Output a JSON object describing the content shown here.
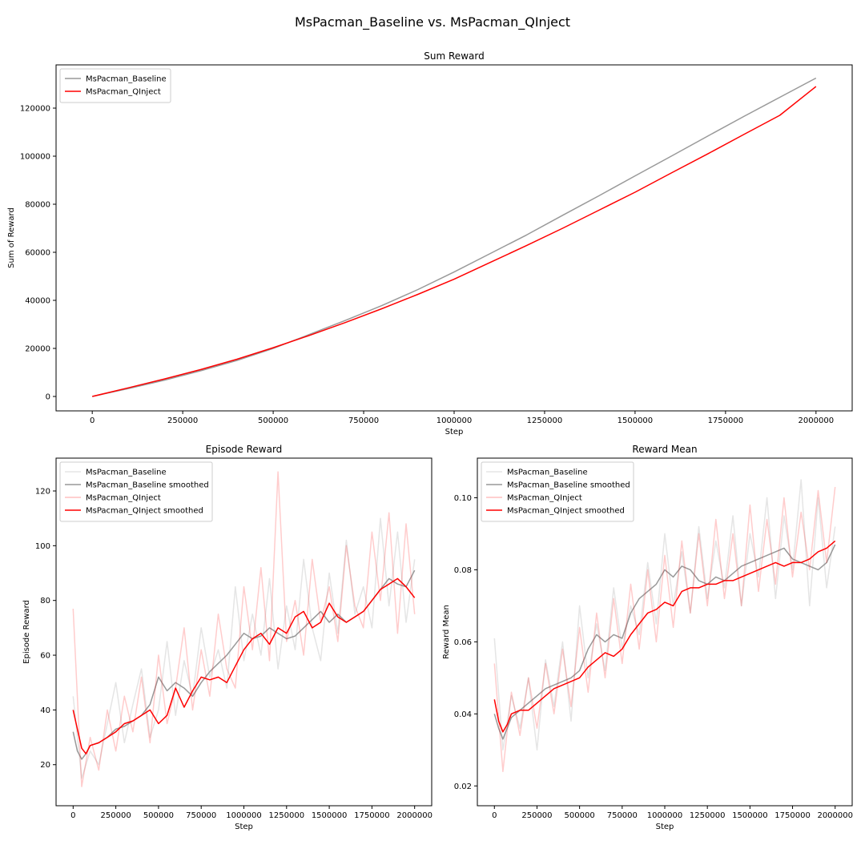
{
  "figure": {
    "title": "MsPacman_Baseline vs. MsPacman_QInject"
  },
  "colors": {
    "baseline": "#999999",
    "qinject": "#ff0000"
  },
  "chart_data": [
    {
      "type": "line",
      "title": "Sum Reward",
      "xlabel": "Step",
      "ylabel": "Sum of Reward",
      "xlim": [
        -100000,
        2100000
      ],
      "ylim": [
        -6000,
        138000
      ],
      "xticks": [
        0,
        250000,
        500000,
        750000,
        1000000,
        1250000,
        1500000,
        1750000,
        2000000
      ],
      "yticks": [
        0,
        20000,
        40000,
        60000,
        80000,
        100000,
        120000
      ],
      "legend": "top-left",
      "grid": false,
      "series": [
        {
          "name": "MsPacman_Baseline",
          "color": "#999999",
          "opacity": 1,
          "x": [
            0,
            100000,
            200000,
            300000,
            400000,
            500000,
            600000,
            700000,
            800000,
            900000,
            1000000,
            1100000,
            1200000,
            1300000,
            1400000,
            1500000,
            1600000,
            1700000,
            1800000,
            1900000,
            2000000
          ],
          "y": [
            0,
            3300,
            6800,
            10700,
            15000,
            20000,
            25800,
            31700,
            37800,
            44500,
            51800,
            59500,
            67200,
            75400,
            83500,
            91800,
            100000,
            108300,
            116500,
            124500,
            132500
          ]
        },
        {
          "name": "MsPacman_QInject",
          "color": "#ff0000",
          "opacity": 1,
          "x": [
            0,
            100000,
            200000,
            300000,
            400000,
            500000,
            600000,
            700000,
            800000,
            900000,
            1000000,
            1100000,
            1200000,
            1300000,
            1400000,
            1500000,
            1600000,
            1700000,
            1800000,
            1900000,
            2000000
          ],
          "y": [
            0,
            3600,
            7300,
            11200,
            15500,
            20300,
            25400,
            30800,
            36500,
            42500,
            48800,
            55800,
            62800,
            70000,
            77500,
            85000,
            93000,
            100900,
            109000,
            117000,
            129000
          ]
        }
      ]
    },
    {
      "type": "line",
      "title": "Episode Reward",
      "xlabel": "Step",
      "ylabel": "Episode Reward",
      "xlim": [
        -100000,
        2100000
      ],
      "ylim": [
        5,
        132
      ],
      "xticks": [
        0,
        250000,
        500000,
        750000,
        1000000,
        1250000,
        1500000,
        1750000,
        2000000
      ],
      "yticks": [
        20,
        40,
        60,
        80,
        100,
        120
      ],
      "legend": "top-left",
      "grid": false,
      "series": [
        {
          "name": "MsPacman_Baseline",
          "color": "#999999",
          "opacity": 0.25,
          "x": [
            0,
            50000,
            100000,
            150000,
            200000,
            250000,
            300000,
            350000,
            400000,
            450000,
            500000,
            550000,
            600000,
            650000,
            700000,
            750000,
            800000,
            850000,
            900000,
            950000,
            1000000,
            1050000,
            1100000,
            1150000,
            1200000,
            1250000,
            1300000,
            1350000,
            1400000,
            1450000,
            1500000,
            1550000,
            1600000,
            1650000,
            1700000,
            1750000,
            1800000,
            1850000,
            1900000,
            1950000,
            2000000
          ],
          "y": [
            45,
            15,
            25,
            20,
            35,
            50,
            28,
            42,
            55,
            30,
            40,
            65,
            38,
            58,
            45,
            70,
            52,
            62,
            48,
            85,
            58,
            75,
            60,
            88,
            55,
            78,
            62,
            95,
            70,
            58,
            90,
            68,
            102,
            75,
            85,
            70,
            110,
            78,
            105,
            72,
            95
          ]
        },
        {
          "name": "MsPacman_Baseline smoothed",
          "color": "#999999",
          "opacity": 1,
          "x": [
            0,
            25000,
            50000,
            75000,
            100000,
            150000,
            200000,
            250000,
            300000,
            350000,
            400000,
            450000,
            500000,
            550000,
            600000,
            650000,
            700000,
            750000,
            800000,
            850000,
            900000,
            950000,
            1000000,
            1050000,
            1100000,
            1150000,
            1200000,
            1250000,
            1300000,
            1350000,
            1400000,
            1450000,
            1500000,
            1550000,
            1600000,
            1650000,
            1700000,
            1750000,
            1800000,
            1850000,
            1900000,
            1950000,
            2000000
          ],
          "y": [
            32,
            25,
            22,
            24,
            27,
            28,
            30,
            33,
            34,
            36,
            38,
            42,
            52,
            47,
            50,
            48,
            45,
            50,
            54,
            57,
            60,
            64,
            68,
            66,
            67,
            70,
            68,
            66,
            67,
            70,
            73,
            76,
            72,
            75,
            72,
            74,
            76,
            80,
            84,
            88,
            86,
            85,
            91
          ]
        },
        {
          "name": "MsPacman_QInject",
          "color": "#ff0000",
          "opacity": 0.2,
          "x": [
            0,
            50000,
            100000,
            150000,
            200000,
            250000,
            300000,
            350000,
            400000,
            450000,
            500000,
            550000,
            600000,
            650000,
            700000,
            750000,
            800000,
            850000,
            900000,
            950000,
            1000000,
            1050000,
            1100000,
            1150000,
            1200000,
            1250000,
            1300000,
            1350000,
            1400000,
            1450000,
            1500000,
            1550000,
            1600000,
            1650000,
            1700000,
            1750000,
            1800000,
            1850000,
            1900000,
            1950000,
            2000000
          ],
          "y": [
            77,
            12,
            30,
            18,
            40,
            25,
            45,
            32,
            52,
            28,
            60,
            35,
            48,
            70,
            40,
            62,
            45,
            75,
            55,
            48,
            85,
            62,
            92,
            58,
            127,
            65,
            80,
            60,
            95,
            72,
            85,
            65,
            100,
            78,
            70,
            105,
            80,
            112,
            68,
            108,
            75
          ]
        },
        {
          "name": "MsPacman_QInject smoothed",
          "color": "#ff0000",
          "opacity": 1,
          "x": [
            0,
            25000,
            50000,
            75000,
            100000,
            150000,
            200000,
            250000,
            300000,
            350000,
            400000,
            450000,
            500000,
            550000,
            600000,
            650000,
            700000,
            750000,
            800000,
            850000,
            900000,
            950000,
            1000000,
            1050000,
            1100000,
            1150000,
            1200000,
            1250000,
            1300000,
            1350000,
            1400000,
            1450000,
            1500000,
            1550000,
            1600000,
            1650000,
            1700000,
            1750000,
            1800000,
            1850000,
            1900000,
            1950000,
            2000000
          ],
          "y": [
            40,
            33,
            26,
            24,
            27,
            28,
            30,
            32,
            35,
            36,
            38,
            40,
            35,
            38,
            48,
            41,
            47,
            52,
            51,
            52,
            50,
            56,
            62,
            66,
            68,
            64,
            70,
            68,
            74,
            76,
            70,
            72,
            79,
            74,
            72,
            74,
            76,
            80,
            84,
            86,
            88,
            85,
            81
          ]
        }
      ]
    },
    {
      "type": "line",
      "title": "Reward Mean",
      "xlabel": "Step",
      "ylabel": "Reward Mean",
      "xlim": [
        -100000,
        2100000
      ],
      "ylim": [
        0.0145,
        0.111
      ],
      "xticks": [
        0,
        250000,
        500000,
        750000,
        1000000,
        1250000,
        1500000,
        1750000,
        2000000
      ],
      "yticks": [
        0.02,
        0.04,
        0.06,
        0.08,
        0.1
      ],
      "legend": "top-left",
      "grid": false,
      "series": [
        {
          "name": "MsPacman_Baseline",
          "color": "#999999",
          "opacity": 0.25,
          "x": [
            0,
            50000,
            100000,
            150000,
            200000,
            250000,
            300000,
            350000,
            400000,
            450000,
            500000,
            550000,
            600000,
            650000,
            700000,
            750000,
            800000,
            850000,
            900000,
            950000,
            1000000,
            1050000,
            1100000,
            1150000,
            1200000,
            1250000,
            1300000,
            1350000,
            1400000,
            1450000,
            1500000,
            1550000,
            1600000,
            1650000,
            1700000,
            1750000,
            1800000,
            1850000,
            1900000,
            1950000,
            2000000
          ],
          "y": [
            0.061,
            0.03,
            0.045,
            0.036,
            0.05,
            0.03,
            0.055,
            0.042,
            0.06,
            0.038,
            0.07,
            0.05,
            0.065,
            0.052,
            0.075,
            0.058,
            0.07,
            0.062,
            0.082,
            0.065,
            0.09,
            0.07,
            0.085,
            0.068,
            0.092,
            0.072,
            0.088,
            0.075,
            0.095,
            0.07,
            0.09,
            0.078,
            0.1,
            0.072,
            0.095,
            0.08,
            0.105,
            0.07,
            0.1,
            0.075,
            0.092
          ]
        },
        {
          "name": "MsPacman_Baseline smoothed",
          "color": "#999999",
          "opacity": 1,
          "x": [
            0,
            25000,
            50000,
            75000,
            100000,
            150000,
            200000,
            250000,
            300000,
            350000,
            400000,
            450000,
            500000,
            550000,
            600000,
            650000,
            700000,
            750000,
            800000,
            850000,
            900000,
            950000,
            1000000,
            1050000,
            1100000,
            1150000,
            1200000,
            1250000,
            1300000,
            1350000,
            1400000,
            1450000,
            1500000,
            1550000,
            1600000,
            1650000,
            1700000,
            1750000,
            1800000,
            1850000,
            1900000,
            1950000,
            2000000
          ],
          "y": [
            0.04,
            0.036,
            0.033,
            0.036,
            0.039,
            0.041,
            0.043,
            0.045,
            0.047,
            0.048,
            0.049,
            0.05,
            0.052,
            0.058,
            0.062,
            0.06,
            0.062,
            0.061,
            0.068,
            0.072,
            0.074,
            0.076,
            0.08,
            0.078,
            0.081,
            0.08,
            0.077,
            0.076,
            0.078,
            0.077,
            0.079,
            0.081,
            0.082,
            0.083,
            0.084,
            0.085,
            0.086,
            0.083,
            0.082,
            0.081,
            0.08,
            0.082,
            0.087
          ]
        },
        {
          "name": "MsPacman_QInject",
          "color": "#ff0000",
          "opacity": 0.2,
          "x": [
            0,
            50000,
            100000,
            150000,
            200000,
            250000,
            300000,
            350000,
            400000,
            450000,
            500000,
            550000,
            600000,
            650000,
            700000,
            750000,
            800000,
            850000,
            900000,
            950000,
            1000000,
            1050000,
            1100000,
            1150000,
            1200000,
            1250000,
            1300000,
            1350000,
            1400000,
            1450000,
            1500000,
            1550000,
            1600000,
            1650000,
            1700000,
            1750000,
            1800000,
            1850000,
            1900000,
            1950000,
            2000000
          ],
          "y": [
            0.054,
            0.024,
            0.046,
            0.034,
            0.05,
            0.036,
            0.054,
            0.04,
            0.058,
            0.042,
            0.064,
            0.046,
            0.068,
            0.05,
            0.072,
            0.054,
            0.076,
            0.058,
            0.08,
            0.06,
            0.084,
            0.064,
            0.088,
            0.068,
            0.09,
            0.07,
            0.094,
            0.072,
            0.09,
            0.07,
            0.098,
            0.074,
            0.094,
            0.076,
            0.1,
            0.078,
            0.096,
            0.08,
            0.102,
            0.082,
            0.103
          ]
        },
        {
          "name": "MsPacman_QInject smoothed",
          "color": "#ff0000",
          "opacity": 1,
          "x": [
            0,
            25000,
            50000,
            75000,
            100000,
            150000,
            200000,
            250000,
            300000,
            350000,
            400000,
            450000,
            500000,
            550000,
            600000,
            650000,
            700000,
            750000,
            800000,
            850000,
            900000,
            950000,
            1000000,
            1050000,
            1100000,
            1150000,
            1200000,
            1250000,
            1300000,
            1350000,
            1400000,
            1450000,
            1500000,
            1550000,
            1600000,
            1650000,
            1700000,
            1750000,
            1800000,
            1850000,
            1900000,
            1950000,
            2000000
          ],
          "y": [
            0.044,
            0.038,
            0.035,
            0.037,
            0.04,
            0.041,
            0.041,
            0.043,
            0.045,
            0.047,
            0.048,
            0.049,
            0.05,
            0.053,
            0.055,
            0.057,
            0.056,
            0.058,
            0.062,
            0.065,
            0.068,
            0.069,
            0.071,
            0.07,
            0.074,
            0.075,
            0.075,
            0.076,
            0.076,
            0.077,
            0.077,
            0.078,
            0.079,
            0.08,
            0.081,
            0.082,
            0.081,
            0.082,
            0.082,
            0.083,
            0.085,
            0.086,
            0.088
          ]
        }
      ]
    }
  ]
}
